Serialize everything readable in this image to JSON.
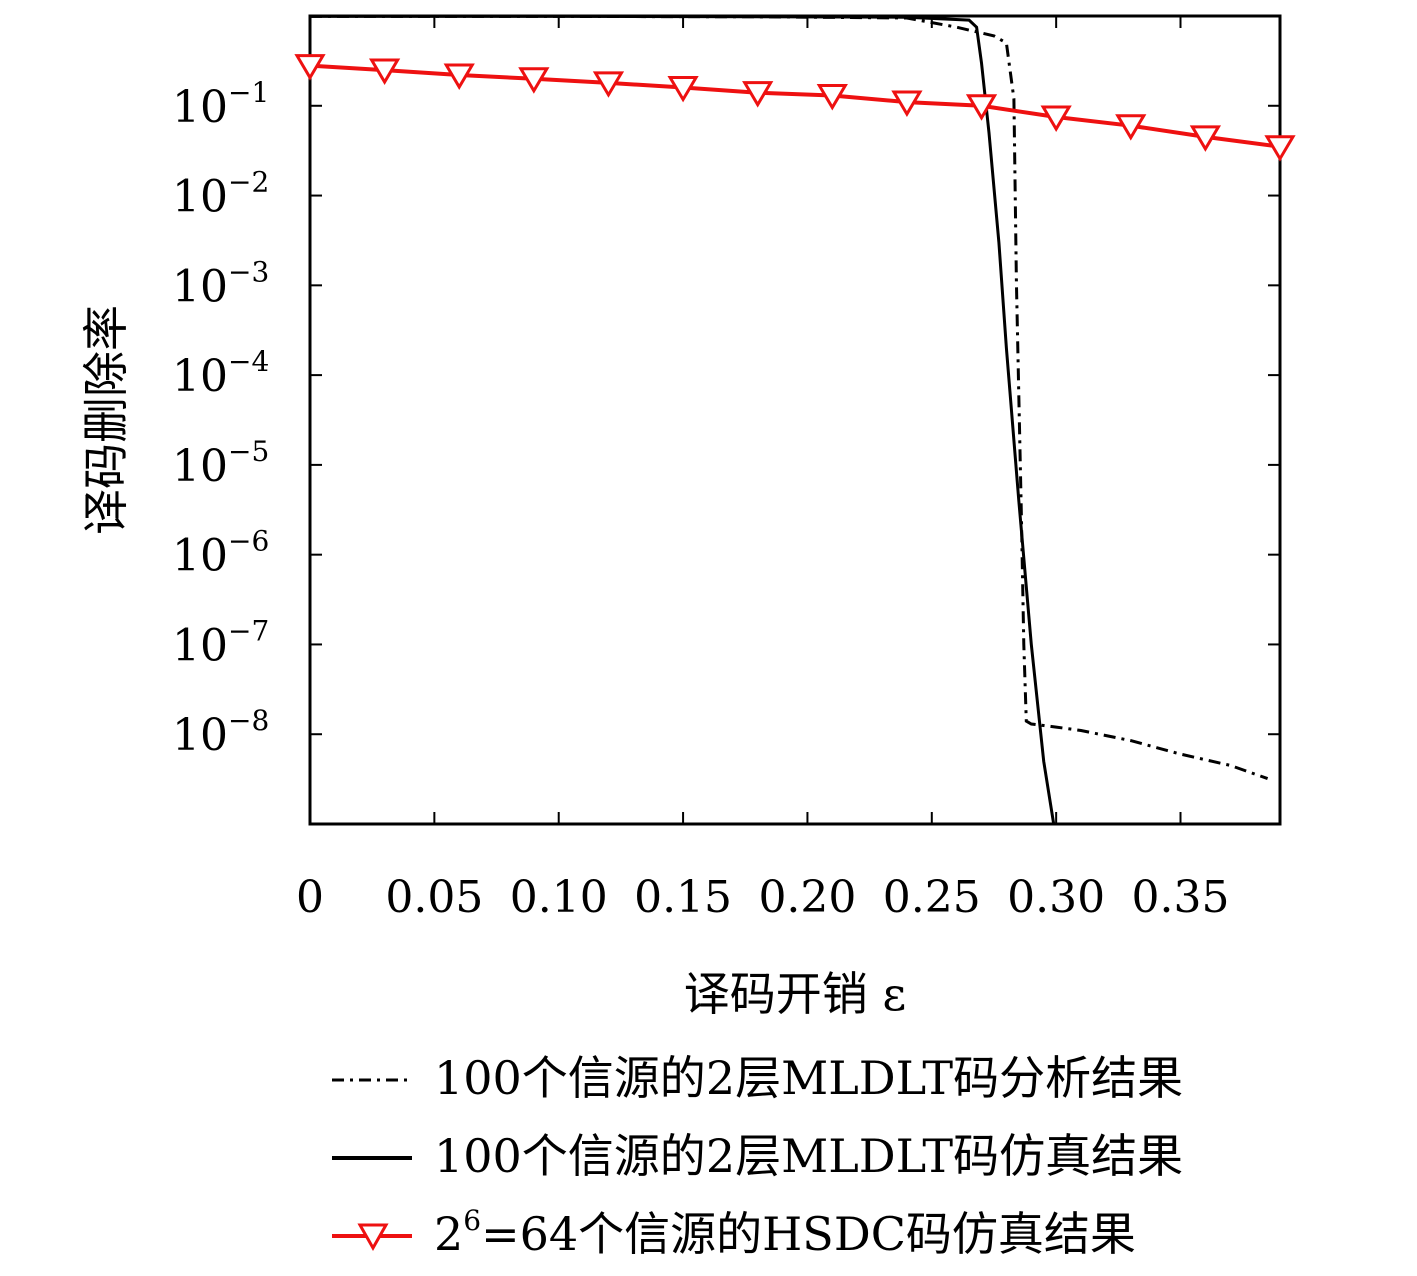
{
  "chart_data": {
    "type": "line",
    "title": "",
    "xlabel": "译码开销 ε",
    "ylabel": "译码删除率",
    "xlim": [
      0,
      0.39
    ],
    "ylim_log10": [
      -9,
      0
    ],
    "y_scale": "log",
    "grid": false,
    "legend_position": "bottom",
    "x_ticks": [
      {
        "value": 0,
        "label": "0"
      },
      {
        "value": 0.05,
        "label": "0.05"
      },
      {
        "value": 0.1,
        "label": "0.10"
      },
      {
        "value": 0.15,
        "label": "0.15"
      },
      {
        "value": 0.2,
        "label": "0.20"
      },
      {
        "value": 0.25,
        "label": "0.25"
      },
      {
        "value": 0.3,
        "label": "0.30"
      },
      {
        "value": 0.35,
        "label": "0.35"
      }
    ],
    "y_ticks": [
      {
        "value": 0.1,
        "base": "10",
        "exp": "−1"
      },
      {
        "value": 0.01,
        "base": "10",
        "exp": "−2"
      },
      {
        "value": 0.001,
        "base": "10",
        "exp": "−3"
      },
      {
        "value": 0.0001,
        "base": "10",
        "exp": "−4"
      },
      {
        "value": 1e-05,
        "base": "10",
        "exp": "−5"
      },
      {
        "value": 1e-06,
        "base": "10",
        "exp": "−6"
      },
      {
        "value": 1e-07,
        "base": "10",
        "exp": "−7"
      },
      {
        "value": 1e-08,
        "base": "10",
        "exp": "−8"
      }
    ],
    "series": [
      {
        "name": "100个信源的2层MLDLT码分析结果",
        "style": "dashdot",
        "color": "#000000",
        "marker": "none",
        "points": [
          [
            0,
            0.99
          ],
          [
            0.1,
            0.99
          ],
          [
            0.18,
            0.98
          ],
          [
            0.24,
            0.95
          ],
          [
            0.26,
            0.75
          ],
          [
            0.275,
            0.6
          ],
          [
            0.28,
            0.5
          ],
          [
            0.283,
            0.12
          ],
          [
            0.284,
            0.0011
          ],
          [
            0.285,
            6e-05
          ],
          [
            0.286,
            3e-06
          ],
          [
            0.287,
            1e-07
          ],
          [
            0.288,
            1.4e-08
          ],
          [
            0.29,
            1.3e-08
          ],
          [
            0.3,
            1.2e-08
          ],
          [
            0.31,
            1.1e-08
          ],
          [
            0.33,
            8.5e-09
          ],
          [
            0.35,
            6e-09
          ],
          [
            0.37,
            4.5e-09
          ],
          [
            0.385,
            3.2e-09
          ]
        ]
      },
      {
        "name": "100个信源的2层MLDLT码仿真结果",
        "style": "solid",
        "color": "#000000",
        "marker": "none",
        "points": [
          [
            0,
            0.99
          ],
          [
            0.1,
            0.99
          ],
          [
            0.18,
            0.98
          ],
          [
            0.24,
            0.97
          ],
          [
            0.265,
            0.9
          ],
          [
            0.268,
            0.75
          ],
          [
            0.27,
            0.3
          ],
          [
            0.273,
            0.05
          ],
          [
            0.277,
            0.003
          ],
          [
            0.28,
            0.0002
          ],
          [
            0.285,
            4e-06
          ],
          [
            0.29,
            1e-07
          ],
          [
            0.295,
            5e-09
          ],
          [
            0.299,
            1e-09
          ]
        ]
      },
      {
        "name": "2⁶=64个信源的HSDC码仿真结果",
        "style": "solid",
        "color": "#ee1111",
        "marker": "triangle-down",
        "points": [
          [
            0,
            0.28
          ],
          [
            0.03,
            0.25
          ],
          [
            0.06,
            0.22
          ],
          [
            0.09,
            0.2
          ],
          [
            0.12,
            0.18
          ],
          [
            0.15,
            0.16
          ],
          [
            0.18,
            0.14
          ],
          [
            0.21,
            0.13
          ],
          [
            0.24,
            0.11
          ],
          [
            0.27,
            0.1
          ],
          [
            0.3,
            0.075
          ],
          [
            0.33,
            0.06
          ],
          [
            0.36,
            0.045
          ],
          [
            0.39,
            0.035
          ]
        ]
      }
    ],
    "legend_entries": [
      {
        "label": "100个信源的",
        "num": "2",
        "rest": "层MLDLT码分析结果"
      },
      {
        "label": "100个信源的",
        "num": "2",
        "rest": "层MLDLT码仿真结果"
      },
      {
        "base": "2",
        "sup": "6",
        "rest": "=64个信源的HSDC码仿真结果"
      }
    ]
  }
}
